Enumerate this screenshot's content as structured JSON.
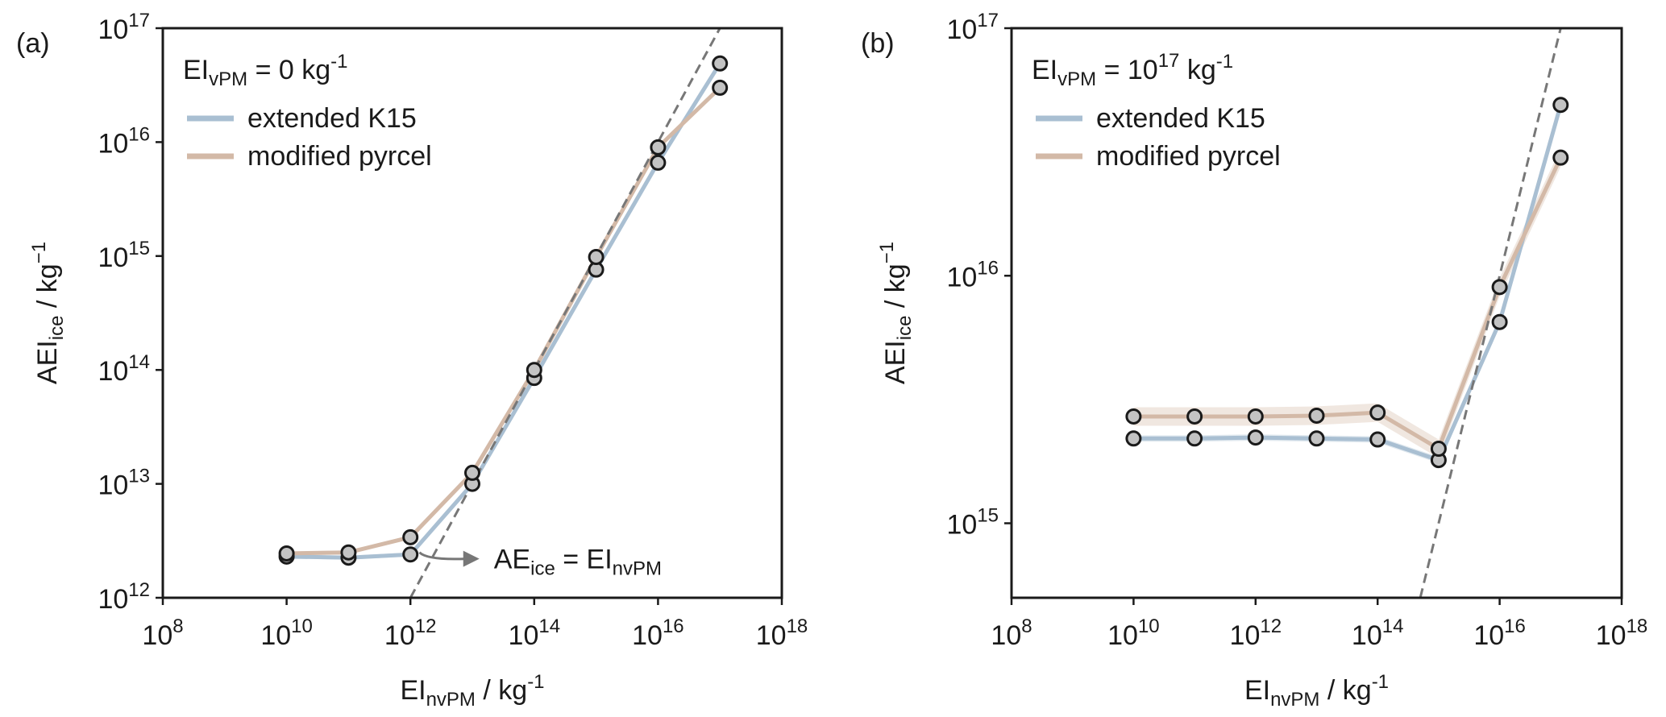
{
  "chart_data": [
    {
      "panel_label": "(a)",
      "type": "line",
      "xscale": "log",
      "yscale": "log",
      "xlim": [
        100000000.0,
        1e+18
      ],
      "ylim": [
        1000000000000.0,
        1e+17
      ],
      "xlabel": {
        "base": "EI",
        "sub": "nvPM",
        "unit": " / kg",
        "sup": "-1"
      },
      "ylabel": {
        "base": "AEI",
        "sub": "ice",
        "unit": " / kg",
        "sup": "−1"
      },
      "x_ticks": [
        {
          "value": 100000000.0,
          "base": "10",
          "exp": "8"
        },
        {
          "value": 10000000000.0,
          "base": "10",
          "exp": "10"
        },
        {
          "value": 1000000000000.0,
          "base": "10",
          "exp": "12"
        },
        {
          "value": 100000000000000.0,
          "base": "10",
          "exp": "14"
        },
        {
          "value": 1e+16,
          "base": "10",
          "exp": "16"
        },
        {
          "value": 1e+18,
          "base": "10",
          "exp": "18"
        }
      ],
      "y_ticks": [
        {
          "value": 1000000000000.0,
          "base": "10",
          "exp": "12"
        },
        {
          "value": 10000000000000.0,
          "base": "10",
          "exp": "13"
        },
        {
          "value": 100000000000000.0,
          "base": "10",
          "exp": "14"
        },
        {
          "value": 1000000000000000.0,
          "base": "10",
          "exp": "15"
        },
        {
          "value": 1e+16,
          "base": "10",
          "exp": "16"
        },
        {
          "value": 1e+17,
          "base": "10",
          "exp": "17"
        }
      ],
      "annotation_top": {
        "base": "EI",
        "sub": "vPM",
        "text": " = 0 kg",
        "sup": "-1"
      },
      "legend_position": "top-left",
      "legend": [
        {
          "label": "extended K15",
          "color": "#a9bfd2"
        },
        {
          "label": "modified pyrcel",
          "color": "#d3b9a7"
        }
      ],
      "series": [
        {
          "name": "extended K15",
          "color": "#a9bfd2",
          "x": [
            10000000000.0,
            100000000000.0,
            1000000000000.0,
            10000000000000.0,
            100000000000000.0,
            1000000000000000.0,
            1e+16,
            1e+17
          ],
          "y": [
            2300000000000.0,
            2250000000000.0,
            2400000000000.0,
            10000000000000.0,
            85000000000000.0,
            760000000000000.0,
            6600000000000000.0,
            4.9e+16
          ],
          "band_factor": 1.04
        },
        {
          "name": "modified pyrcel",
          "color": "#d3b9a7",
          "x": [
            10000000000.0,
            100000000000.0,
            1000000000000.0,
            10000000000000.0,
            100000000000000.0,
            1000000000000000.0,
            1e+16,
            1e+17
          ],
          "y": [
            2450000000000.0,
            2500000000000.0,
            3400000000000.0,
            12500000000000.0,
            100000000000000.0,
            980000000000000.0,
            9000000000000000.0,
            3e+16
          ],
          "band_factor": 1.04
        }
      ],
      "reference_line": {
        "relation": "AE_ice = EI_nvPM",
        "color": "#777777",
        "style": "dashed"
      },
      "arrow_annotation": {
        "from_point": [
          1400000000000.0,
          2500000000000.0
        ],
        "to_point": [
          13000000000000.0,
          2200000000000.0
        ],
        "label": {
          "base": "AE",
          "sub": "ice",
          "middle": " = EI",
          "sub2": "nvPM"
        }
      }
    },
    {
      "panel_label": "(b)",
      "type": "line",
      "xscale": "log",
      "yscale": "log",
      "xlim": [
        100000000.0,
        1e+18
      ],
      "ylim": [
        500000000000000.0,
        1e+17
      ],
      "xlabel": {
        "base": "EI",
        "sub": "nvPM",
        "unit": " / kg",
        "sup": "-1"
      },
      "ylabel": {
        "base": "AEI",
        "sub": "ice",
        "unit": " / kg",
        "sup": "−1"
      },
      "x_ticks": [
        {
          "value": 100000000.0,
          "base": "10",
          "exp": "8"
        },
        {
          "value": 10000000000.0,
          "base": "10",
          "exp": "10"
        },
        {
          "value": 1000000000000.0,
          "base": "10",
          "exp": "12"
        },
        {
          "value": 100000000000000.0,
          "base": "10",
          "exp": "14"
        },
        {
          "value": 1e+16,
          "base": "10",
          "exp": "16"
        },
        {
          "value": 1e+18,
          "base": "10",
          "exp": "18"
        }
      ],
      "y_ticks": [
        {
          "value": 1000000000000000.0,
          "base": "10",
          "exp": "15"
        },
        {
          "value": 1e+16,
          "base": "10",
          "exp": "16"
        },
        {
          "value": 1e+17,
          "base": "10",
          "exp": "17"
        }
      ],
      "annotation_top": {
        "base": "EI",
        "sub": "vPM",
        "text": " = 10",
        "exp": "17",
        "text2": " kg",
        "sup": "-1"
      },
      "legend_position": "top-left",
      "legend": [
        {
          "label": "extended K15",
          "color": "#a9bfd2"
        },
        {
          "label": "modified pyrcel",
          "color": "#d3b9a7"
        }
      ],
      "series": [
        {
          "name": "extended K15",
          "color": "#a9bfd2",
          "x": [
            10000000000.0,
            100000000000.0,
            1000000000000.0,
            10000000000000.0,
            100000000000000.0,
            1000000000000000.0,
            1e+16,
            1e+17
          ],
          "y": [
            2200000000000000.0,
            2200000000000000.0,
            2220000000000000.0,
            2200000000000000.0,
            2180000000000000.0,
            1800000000000000.0,
            6500000000000000.0,
            4.9e+16
          ],
          "band_factor": 1.03
        },
        {
          "name": "modified pyrcel",
          "color": "#d3b9a7",
          "x": [
            10000000000.0,
            100000000000.0,
            1000000000000.0,
            10000000000000.0,
            100000000000000.0,
            1000000000000000.0,
            1e+16,
            1e+17
          ],
          "y": [
            2700000000000000.0,
            2700000000000000.0,
            2700000000000000.0,
            2720000000000000.0,
            2800000000000000.0,
            2000000000000000.0,
            9000000000000000.0,
            3e+16
          ],
          "band_factor": 1.09
        }
      ],
      "reference_line": {
        "relation": "AE_ice = EI_nvPM",
        "color": "#777777",
        "style": "dashed"
      }
    }
  ]
}
